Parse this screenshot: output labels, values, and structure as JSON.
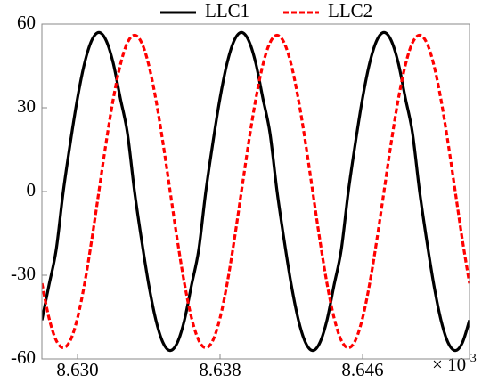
{
  "chart_data": {
    "type": "line",
    "x": [
      8.628,
      8.6284,
      8.6288,
      8.6292,
      8.6296,
      8.63,
      8.6304,
      8.6308,
      8.6312,
      8.6316,
      8.632,
      8.6324,
      8.6328,
      8.6332,
      8.6336,
      8.634,
      8.6344,
      8.6348,
      8.6352,
      8.6356,
      8.636,
      8.6364,
      8.6368,
      8.6372,
      8.6376,
      8.638,
      8.6384,
      8.6388,
      8.6392,
      8.6396,
      8.64,
      8.6404,
      8.6408,
      8.6412,
      8.6416,
      8.642,
      8.6424,
      8.6428,
      8.6432,
      8.6436,
      8.644,
      8.6444,
      8.6448,
      8.6452,
      8.6456,
      8.646,
      8.6464,
      8.6468,
      8.6472,
      8.6476,
      8.648,
      8.6484,
      8.6488,
      8.6492,
      8.6496,
      8.65,
      8.6504,
      8.6508,
      8.6512,
      8.6516,
      8.652
    ],
    "series": [
      {
        "name": "LLC1",
        "color": "#000000",
        "dash": false,
        "values": [
          -46.1,
          -33.5,
          -21,
          0,
          17.6,
          33.5,
          46.1,
          54.2,
          57,
          54.2,
          46.1,
          33.5,
          21,
          0,
          -17.6,
          -33.5,
          -46.1,
          -54.2,
          -57,
          -54.2,
          -46.1,
          -33.5,
          -21,
          0,
          17.6,
          33.5,
          46.1,
          54.2,
          57,
          54.2,
          46.1,
          33.5,
          21,
          0,
          -17.6,
          -33.5,
          -46.1,
          -54.2,
          -57,
          -54.2,
          -46.1,
          -33.5,
          -21,
          0,
          17.6,
          33.5,
          46.1,
          54.2,
          57,
          54.2,
          46.1,
          33.5,
          21,
          0,
          -17.6,
          -33.5,
          -46.1,
          -54.2,
          -57,
          -54.2,
          -46.1
        ]
      },
      {
        "name": "LLC2",
        "color": "#ff0000",
        "dash": true,
        "values": [
          -32.9,
          -45.3,
          -53.3,
          -56,
          -53.3,
          -45.3,
          -32.9,
          -17.3,
          0,
          17.3,
          32.9,
          45.3,
          53.3,
          56,
          53.3,
          45.3,
          32.9,
          17.3,
          0,
          -17.3,
          -32.9,
          -45.3,
          -53.3,
          -56,
          -53.3,
          -45.3,
          -32.9,
          -17.3,
          0,
          17.3,
          32.9,
          45.3,
          53.3,
          56,
          53.3,
          45.3,
          32.9,
          17.3,
          0,
          -17.3,
          -32.9,
          -45.3,
          -53.3,
          -56,
          -53.3,
          -45.3,
          -32.9,
          -17.3,
          0,
          17.3,
          32.9,
          45.3,
          53.3,
          56,
          53.3,
          45.3,
          32.9,
          17.3,
          0,
          -17.3,
          -32.9
        ]
      }
    ],
    "xlim": [
      8.628,
      8.652
    ],
    "xticks": [
      {
        "value": 8.63,
        "label": "8.630"
      },
      {
        "value": 8.638,
        "label": "8.638"
      },
      {
        "value": 8.646,
        "label": "8.646"
      }
    ],
    "ylim": [
      -60,
      60
    ],
    "yticks": [
      -60,
      -30,
      0,
      30,
      60
    ],
    "x_multiplier": {
      "base": "× 10",
      "exponent": "-3"
    },
    "legend": "top"
  }
}
